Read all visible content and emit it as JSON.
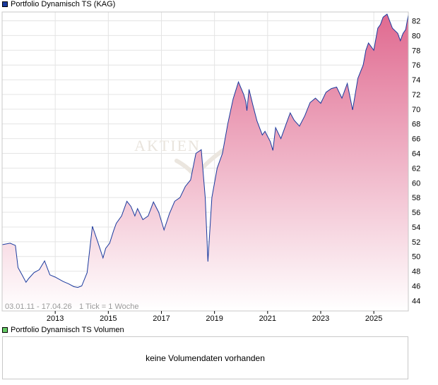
{
  "legend": {
    "price_label": "Portfolio Dynamisch TS (KAG)",
    "price_color": "#1a3a9e",
    "volume_label": "Portfolio Dynamisch TS Volumen",
    "volume_color": "#66cc66"
  },
  "watermark": "AKTIEN",
  "footer_note": {
    "date_range": "03.01.11 - 17.04.26",
    "tick_info": "1 Tick = 1 Woche"
  },
  "volume_panel": {
    "message": "keine Volumendaten vorhanden"
  },
  "colors": {
    "line": "#1a3a9e",
    "area_top": "#e06a90",
    "area_bottom": "#ffffff",
    "grid": "#e4e4e4",
    "frame": "#c8c8c8"
  },
  "chart_data": {
    "type": "area",
    "x_axis": {
      "ticks": [
        "2013",
        "2015",
        "2017",
        "2019",
        "2021",
        "2023",
        "2025"
      ],
      "range": [
        2011.0,
        2026.3
      ]
    },
    "y_axis": {
      "ticks": [
        44,
        46,
        48,
        50,
        52,
        54,
        56,
        58,
        60,
        62,
        64,
        66,
        68,
        70,
        72,
        74,
        76,
        78,
        80,
        82
      ],
      "range": [
        42.6,
        83.2
      ],
      "position": "right"
    },
    "grid": true,
    "series": [
      {
        "x": [
          2011.0,
          2011.3,
          2011.5,
          2011.6,
          2011.75,
          2011.9,
          2012.0,
          2012.2,
          2012.4,
          2012.6,
          2012.8,
          2013.0,
          2013.3,
          2013.5,
          2013.7,
          2013.85,
          2014.0,
          2014.2,
          2014.4,
          2014.6,
          2014.8,
          2014.9,
          2015.05,
          2015.2,
          2015.3,
          2015.5,
          2015.7,
          2015.85,
          2016.0,
          2016.1,
          2016.3,
          2016.5,
          2016.7,
          2016.9,
          2017.1,
          2017.3,
          2017.5,
          2017.7,
          2017.9,
          2018.1,
          2018.3,
          2018.5,
          2018.65,
          2018.75,
          2018.9,
          2019.1,
          2019.3,
          2019.5,
          2019.7,
          2019.9,
          2020.1,
          2020.18,
          2020.22,
          2020.3,
          2020.45,
          2020.6,
          2020.8,
          2020.9,
          2021.0,
          2021.1,
          2021.2,
          2021.3,
          2021.5,
          2021.7,
          2021.85,
          2022.0,
          2022.2,
          2022.4,
          2022.6,
          2022.8,
          2023.0,
          2023.2,
          2023.4,
          2023.6,
          2023.8,
          2024.0,
          2024.2,
          2024.4,
          2024.6,
          2024.7,
          2024.8,
          2025.0,
          2025.15,
          2025.25,
          2025.35,
          2025.5,
          2025.7,
          2025.9,
          2026.0,
          2026.1,
          2026.2,
          2026.3
        ],
        "y": [
          51.6,
          51.8,
          51.5,
          48.5,
          47.5,
          46.5,
          47.0,
          47.8,
          48.2,
          49.4,
          47.5,
          47.2,
          46.6,
          46.3,
          45.9,
          45.8,
          46.0,
          47.8,
          54.1,
          52.0,
          49.8,
          51.1,
          51.8,
          53.5,
          54.5,
          55.5,
          57.5,
          56.8,
          55.5,
          56.5,
          55.0,
          55.5,
          57.4,
          56.0,
          53.6,
          55.8,
          57.5,
          58.0,
          59.5,
          60.4,
          64.0,
          64.5,
          58.0,
          49.3,
          58.0,
          62.0,
          64.0,
          68.0,
          71.4,
          73.7,
          72.0,
          71.0,
          69.8,
          72.7,
          70.5,
          68.4,
          66.5,
          67.0,
          66.3,
          65.6,
          64.4,
          67.5,
          66.0,
          68.0,
          69.5,
          68.5,
          67.7,
          69.1,
          70.9,
          71.5,
          70.8,
          72.3,
          72.8,
          73.0,
          71.5,
          73.5,
          69.9,
          74.2,
          76.0,
          78.0,
          79.0,
          78.0,
          81.0,
          81.5,
          82.5,
          82.9,
          81.0,
          80.3,
          79.3,
          80.3,
          80.8,
          82.8
        ],
        "values": [
          51.6,
          51.8,
          51.5,
          48.5,
          47.5,
          46.5,
          47.0,
          47.8,
          48.2,
          49.4,
          47.5,
          47.2,
          46.6,
          46.3,
          45.9,
          45.8,
          46.0,
          47.8,
          54.1,
          52.0,
          49.8,
          51.1,
          51.8,
          53.5,
          54.5,
          55.5,
          57.5,
          56.8,
          55.5,
          56.5,
          55.0,
          55.5,
          57.4,
          56.0,
          53.6,
          55.8,
          57.5,
          58.0,
          59.5,
          60.4,
          64.0,
          64.5,
          58.0,
          49.3,
          58.0,
          62.0,
          64.0,
          68.0,
          71.4,
          73.7,
          72.0,
          71.0,
          69.8,
          72.7,
          70.5,
          68.4,
          66.5,
          67.0,
          66.3,
          65.6,
          64.4,
          67.5,
          66.0,
          68.0,
          69.5,
          68.5,
          67.7,
          69.1,
          70.9,
          71.5,
          70.8,
          72.3,
          72.8,
          73.0,
          71.5,
          73.5,
          69.9,
          74.2,
          76.0,
          78.0,
          79.0,
          78.0,
          81.0,
          81.5,
          82.5,
          82.9,
          81.0,
          80.3,
          79.3,
          80.3,
          80.8,
          82.8
        ]
      }
    ]
  }
}
